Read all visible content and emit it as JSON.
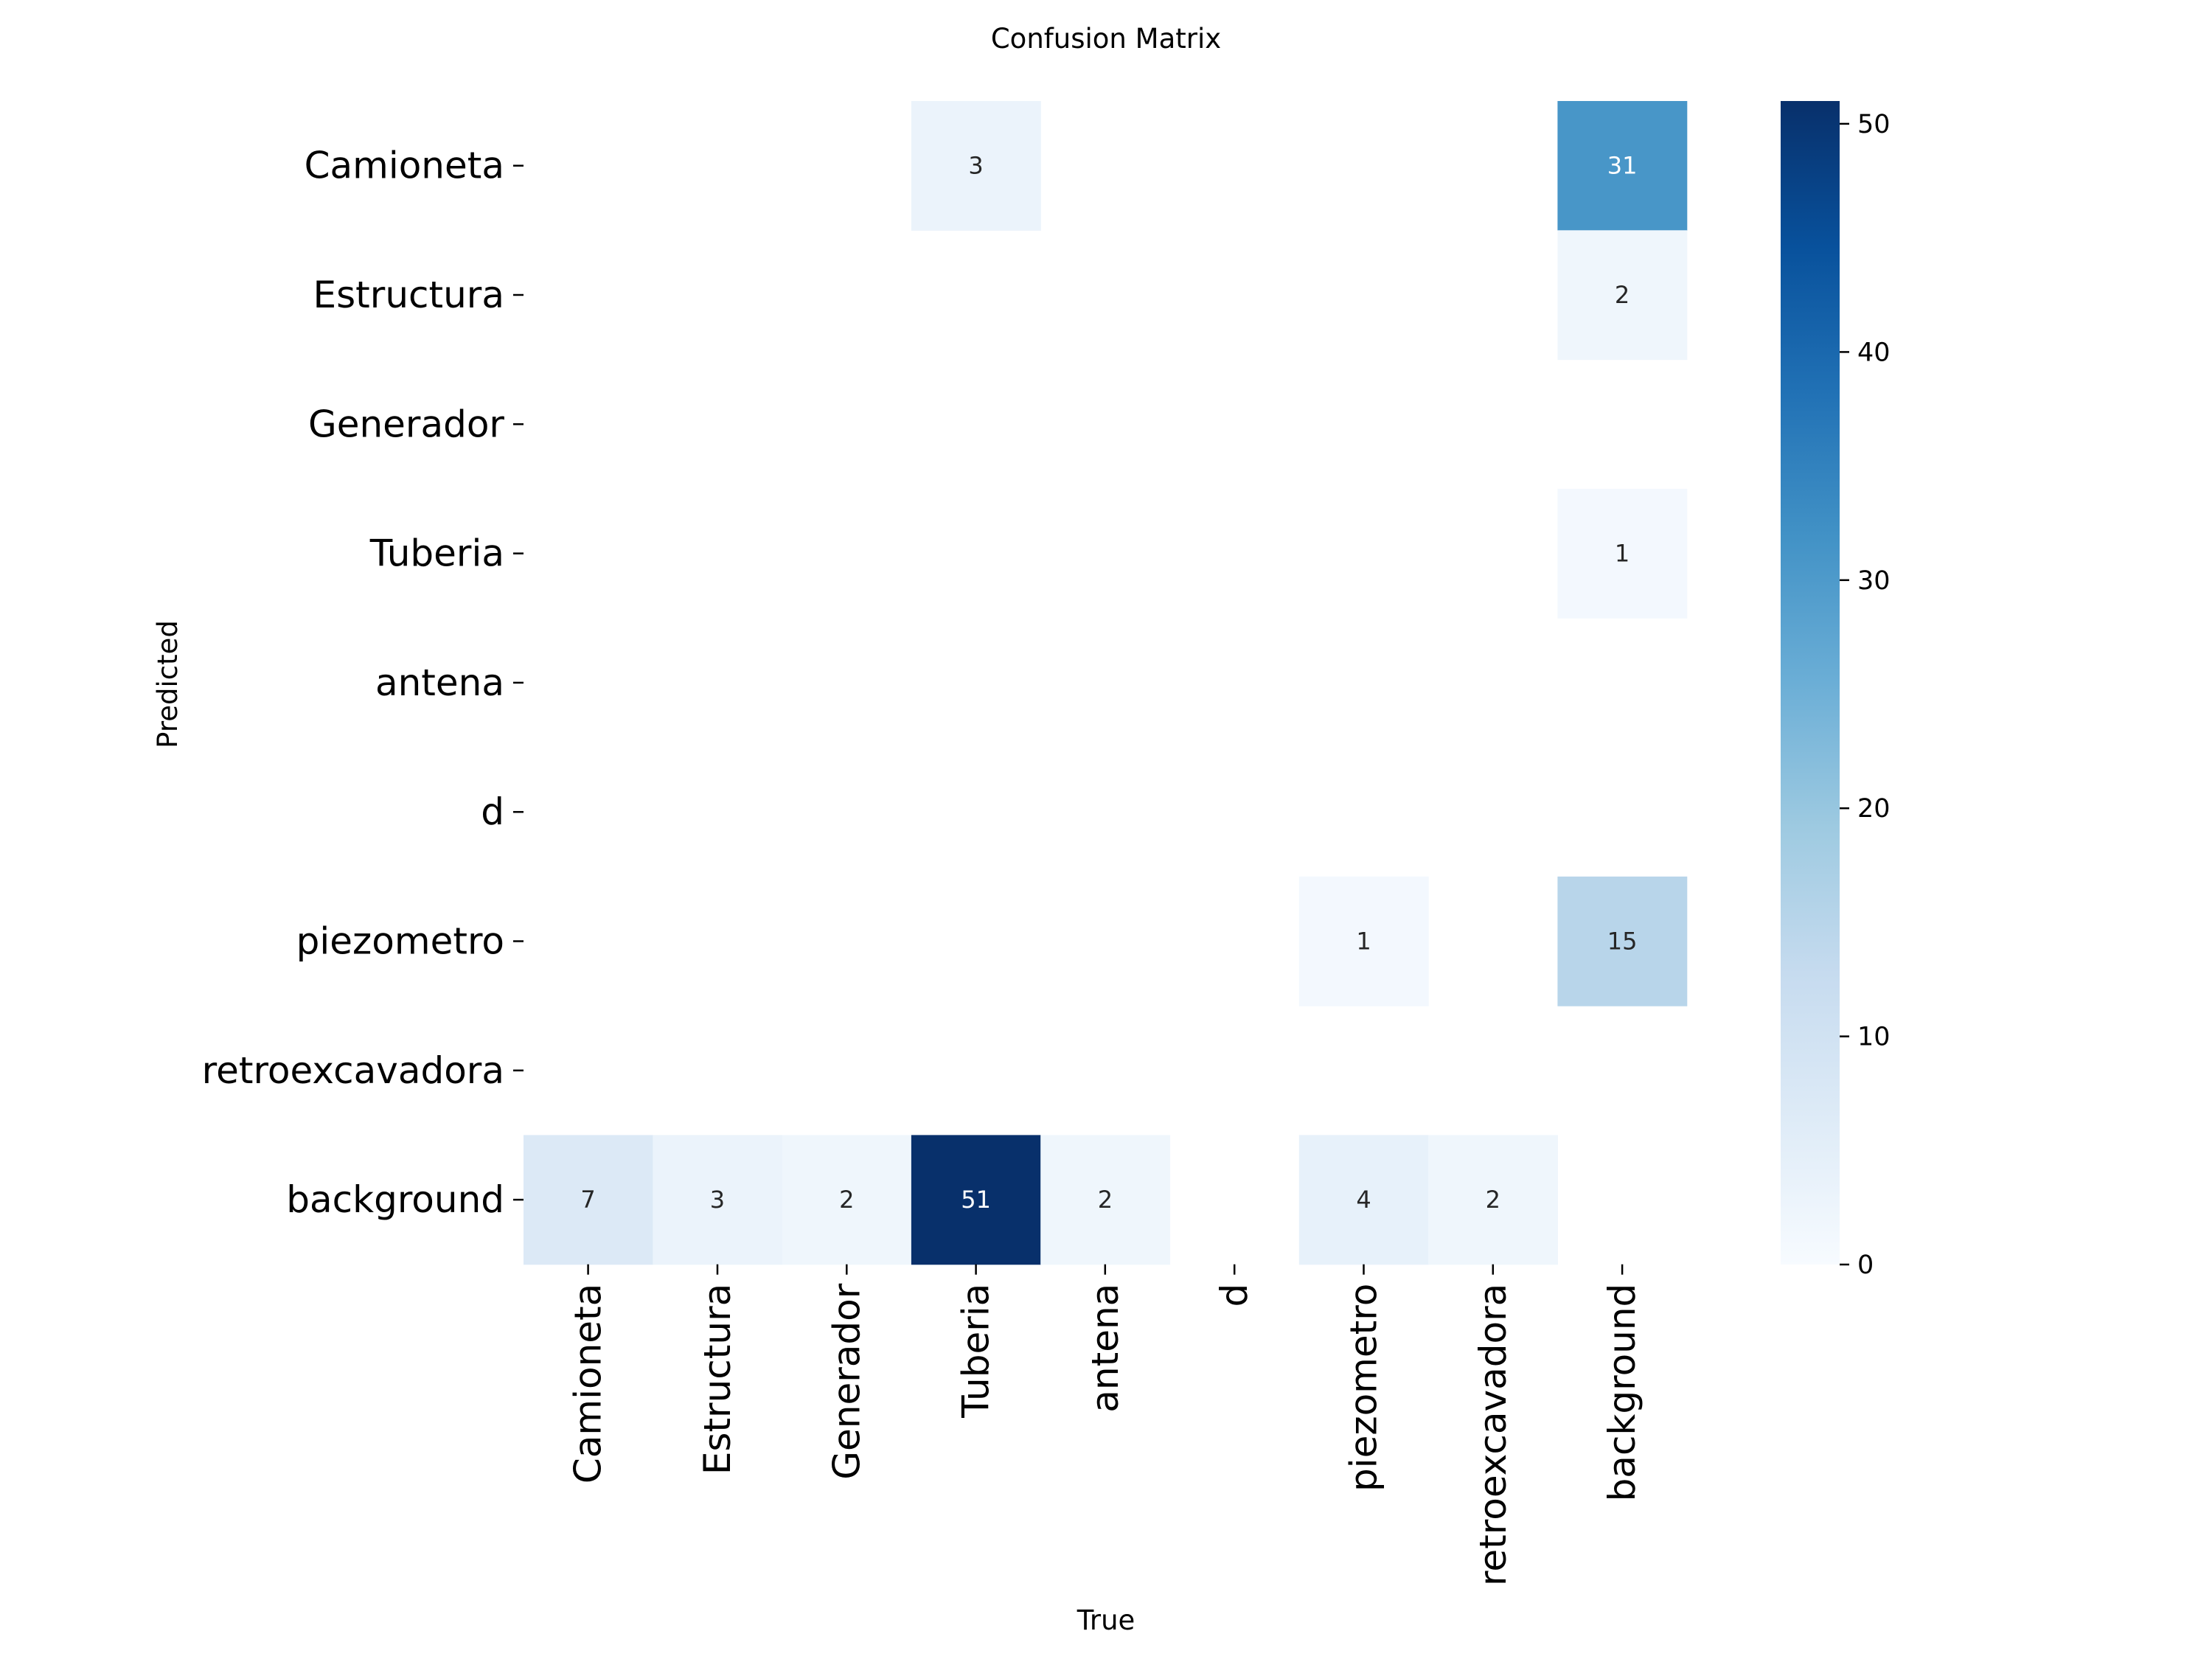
{
  "chart_data": {
    "type": "heatmap",
    "title": "Confusion Matrix",
    "xlabel": "True",
    "ylabel": "Predicted",
    "x_categories": [
      "Camioneta",
      "Estructura",
      "Generador",
      "Tuberia",
      "antena",
      "d",
      "piezometro",
      "retroexcavadora",
      "background"
    ],
    "y_categories": [
      "Camioneta",
      "Estructura",
      "Generador",
      "Tuberia",
      "antena",
      "d",
      "piezometro",
      "retroexcavadora",
      "background"
    ],
    "values": [
      [
        null,
        null,
        null,
        3,
        null,
        null,
        null,
        null,
        31
      ],
      [
        null,
        null,
        null,
        null,
        null,
        null,
        null,
        null,
        2
      ],
      [
        null,
        null,
        null,
        null,
        null,
        null,
        null,
        null,
        null
      ],
      [
        null,
        null,
        null,
        null,
        null,
        null,
        null,
        null,
        1
      ],
      [
        null,
        null,
        null,
        null,
        null,
        null,
        null,
        null,
        null
      ],
      [
        null,
        null,
        null,
        null,
        null,
        null,
        null,
        null,
        null
      ],
      [
        null,
        null,
        null,
        null,
        null,
        null,
        1,
        null,
        15
      ],
      [
        null,
        null,
        null,
        null,
        null,
        null,
        null,
        null,
        null
      ],
      [
        7,
        3,
        2,
        51,
        2,
        null,
        4,
        2,
        null
      ]
    ],
    "colormap": "Blues",
    "vmin": 0,
    "vmax": 51,
    "colorbar_ticks": [
      0,
      10,
      20,
      30,
      40,
      50
    ],
    "grid": false,
    "legend": "colorbar-right"
  }
}
